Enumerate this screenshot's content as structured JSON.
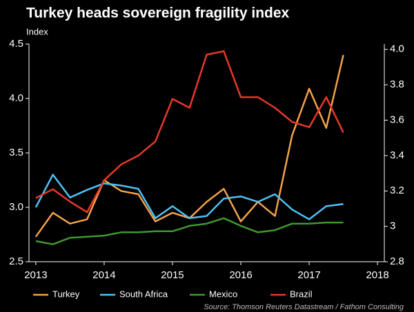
{
  "chart_data": {
    "type": "line",
    "title": "Turkey heads sovereign fragility index",
    "y_label": "Index",
    "source": "Source: Thomson Reuters Datastream / Fathom Consulting",
    "x": [
      2013,
      2013.25,
      2013.5,
      2013.75,
      2014,
      2014.25,
      2014.5,
      2014.75,
      2015,
      2015.25,
      2015.5,
      2015.75,
      2016,
      2016.25,
      2016.5,
      2016.75,
      2017,
      2017.25,
      2017.5
    ],
    "xlim": [
      2012.9,
      2018.1
    ],
    "xticks": [
      2013,
      2014,
      2015,
      2016,
      2017,
      2018
    ],
    "ylim": [
      2.5,
      4.5
    ],
    "yticks": [
      {
        "value": 2.5,
        "label": "2.5"
      },
      {
        "value": 3,
        "label": "3.0"
      },
      {
        "value": 3.5,
        "label": "3.5"
      },
      {
        "value": 4,
        "label": "4.0"
      },
      {
        "value": 4.5,
        "label": "4.5"
      }
    ],
    "y2lim": [
      2.8,
      4.03
    ],
    "y2ticks": [
      2.8,
      3,
      3.2,
      3.4,
      3.6,
      3.8,
      {
        "value": 4,
        "label": "4.0"
      }
    ],
    "series": [
      {
        "name": "Turkey",
        "color": "#f5a34a",
        "values": [
          2.73,
          2.95,
          2.85,
          2.89,
          3.25,
          3.15,
          3.12,
          2.87,
          2.95,
          2.9,
          3.05,
          3.17,
          2.87,
          3.05,
          2.92,
          3.66,
          4.09,
          3.73,
          4.4
        ]
      },
      {
        "name": "South Africa",
        "color": "#4fc3f7",
        "values": [
          3.0,
          3.3,
          3.09,
          3.16,
          3.22,
          3.2,
          3.17,
          2.9,
          3.01,
          2.9,
          2.92,
          3.08,
          3.1,
          3.05,
          3.12,
          2.98,
          2.89,
          3.01,
          3.03
        ]
      },
      {
        "name": "Mexico",
        "color": "#3e9a2e",
        "values": [
          2.69,
          2.66,
          2.72,
          2.73,
          2.74,
          2.77,
          2.77,
          2.78,
          2.78,
          2.83,
          2.85,
          2.9,
          2.83,
          2.77,
          2.79,
          2.85,
          2.85,
          2.86,
          2.86
        ]
      },
      {
        "name": "Brazil",
        "color": "#e8392b",
        "axis": "y2",
        "values": [
          3.16,
          3.21,
          3.14,
          3.08,
          3.26,
          3.35,
          3.4,
          3.48,
          3.72,
          3.67,
          3.97,
          3.99,
          3.73,
          3.73,
          3.67,
          3.59,
          3.56,
          3.73,
          3.53
        ]
      }
    ]
  }
}
